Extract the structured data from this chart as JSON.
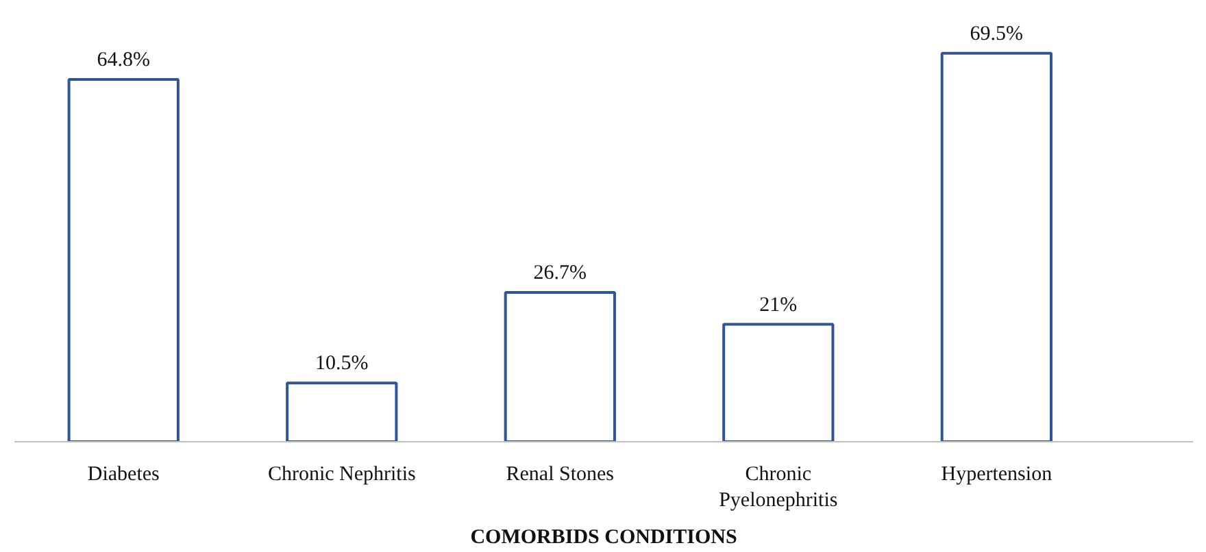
{
  "chart_data": {
    "type": "bar",
    "xlabel": "COMORBIDS CONDITIONS",
    "categories": [
      "Diabetes",
      "Chronic Nephritis",
      "Renal Stones",
      "Chronic Pyelonephritis",
      "Hypertension"
    ],
    "values": [
      64.8,
      10.5,
      26.7,
      21,
      69.5
    ],
    "value_labels": [
      "64.8%",
      "10.5%",
      "26.7%",
      "21%",
      "69.5%"
    ],
    "color": "#2e5597"
  }
}
